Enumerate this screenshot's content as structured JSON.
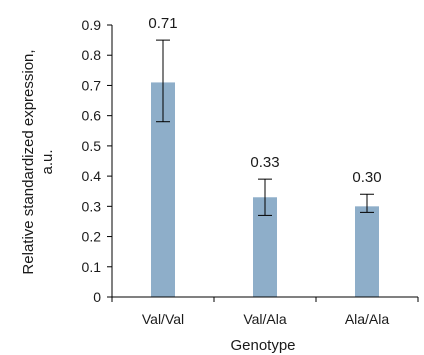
{
  "chart_data": {
    "type": "bar",
    "categories": [
      "Val/Val",
      "Val/Ala",
      "Ala/Ala"
    ],
    "values": [
      0.71,
      0.33,
      0.3
    ],
    "value_labels": [
      "0.71",
      "0.33",
      "0.30"
    ],
    "error_low": [
      0.58,
      0.27,
      0.28
    ],
    "error_high": [
      0.85,
      0.39,
      0.34
    ],
    "ylim": [
      0,
      0.9
    ],
    "yticks": [
      0,
      0.1,
      0.2,
      0.3,
      0.4,
      0.5,
      0.6,
      0.7,
      0.8,
      0.9
    ],
    "ytick_labels": [
      "0",
      "0.1",
      "0.2",
      "0.3",
      "0.4",
      "0.5",
      "0.6",
      "0.7",
      "0.8",
      "0.9"
    ],
    "xlabel": "Genotype",
    "ylabel_line1": "Relative standardized expression,",
    "ylabel_line2": "a.u.",
    "bar_color": "#8eaec9",
    "grid": false,
    "legend": "none"
  }
}
